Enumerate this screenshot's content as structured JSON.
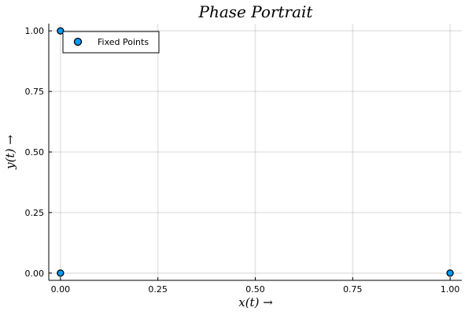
{
  "chart_data": {
    "type": "scatter",
    "title": "Phase Portrait",
    "xlabel": "x(t) →",
    "ylabel": "y(t) →",
    "xlim": [
      -0.03,
      1.03
    ],
    "ylim": [
      -0.03,
      1.03
    ],
    "x_ticks": [
      0.0,
      0.25,
      0.5,
      0.75,
      1.0
    ],
    "y_ticks": [
      0.0,
      0.25,
      0.5,
      0.75,
      1.0
    ],
    "x_tick_labels": [
      "0.00",
      "0.25",
      "0.50",
      "0.75",
      "1.00"
    ],
    "y_tick_labels": [
      "0.00",
      "0.25",
      "0.50",
      "0.75",
      "1.00"
    ],
    "grid": true,
    "legend_position": "top-left",
    "series": [
      {
        "name": "Fixed Points",
        "color": "#009AFA",
        "points": [
          {
            "x": 0.0,
            "y": 1.0
          },
          {
            "x": 0.0,
            "y": 0.0
          },
          {
            "x": 1.0,
            "y": 0.0
          }
        ]
      }
    ]
  }
}
